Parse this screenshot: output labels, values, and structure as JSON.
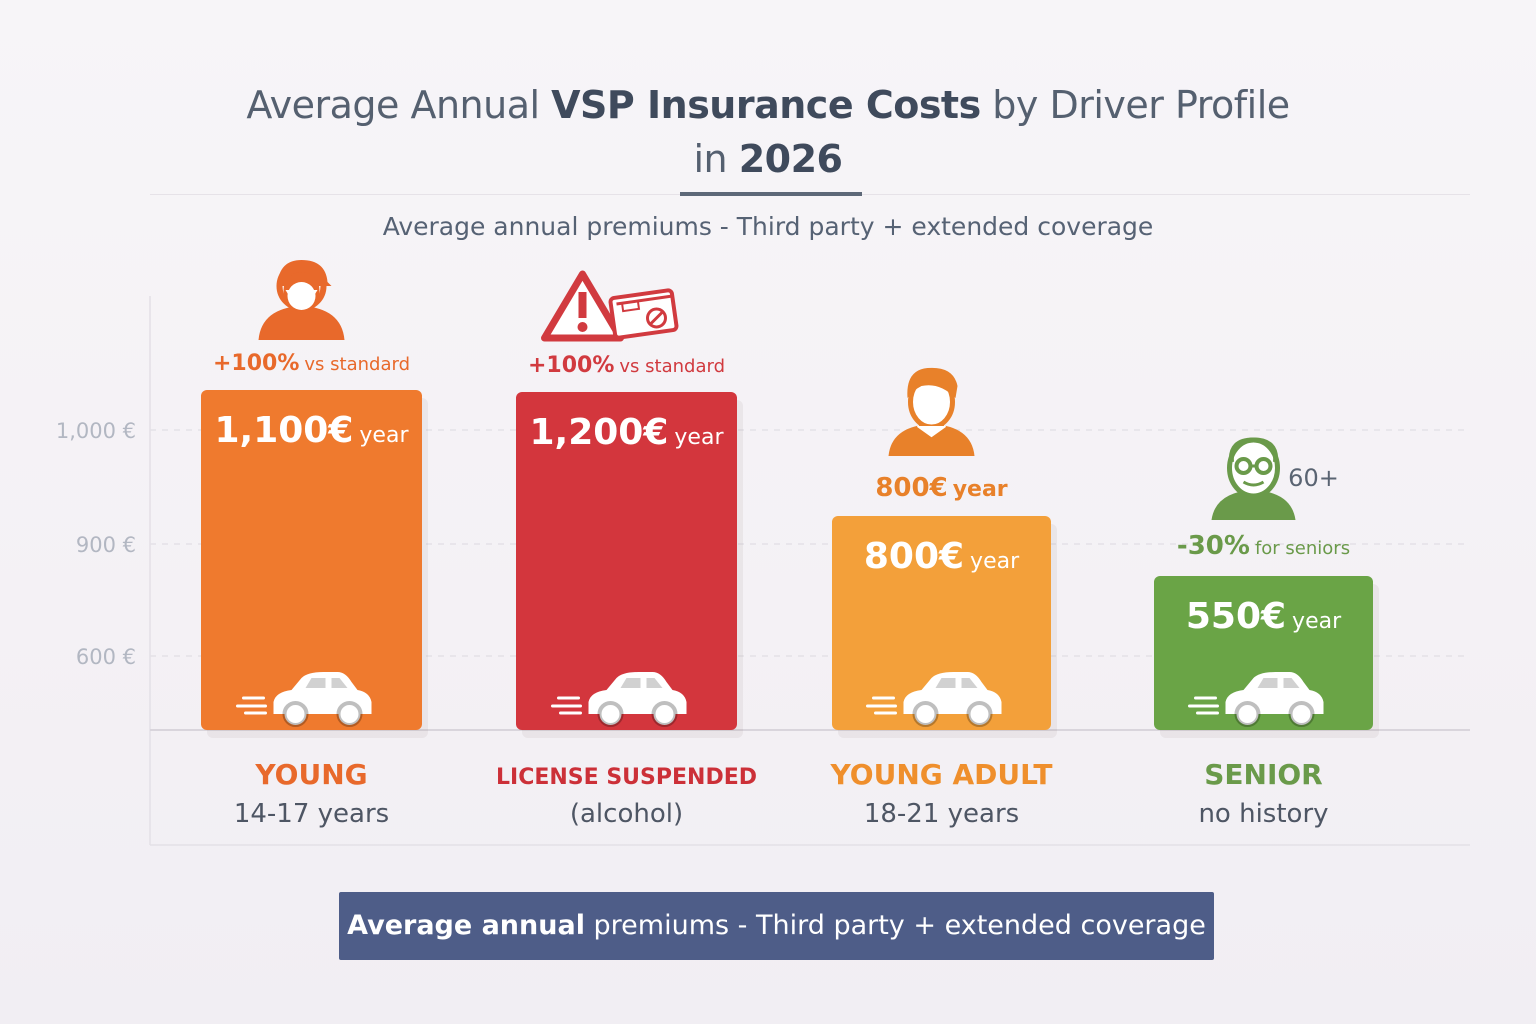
{
  "header": {
    "title_pre": "Average Annual ",
    "title_bold": "VSP Insurance Costs",
    "title_post": " by Driver Profile",
    "title_line2_pre": "in ",
    "title_line2_bold": "2026",
    "subtitle": "Average annual premiums - Third party + extended coverage"
  },
  "footer": {
    "bold": "Average annual",
    "rest": " premiums - Third party + extended coverage"
  },
  "chart_data": {
    "type": "bar",
    "title": "Average Annual VSP Insurance Costs by Driver Profile in 2026",
    "subtitle": "Average annual premiums - Third party + extended coverage",
    "y_ticks": [
      {
        "value": 1000,
        "label": "1,000 €"
      },
      {
        "value": 900,
        "label": "900 €"
      },
      {
        "value": 600,
        "label": "600 €"
      }
    ],
    "grid": true,
    "unit": "€",
    "categories": [
      "YOUNG",
      "LICENSE SUSPENDED",
      "YOUNG ADULT",
      "SENIOR"
    ],
    "values": [
      1100,
      1200,
      800,
      550
    ],
    "bars": [
      {
        "category": "YOUNG",
        "sublabel": "14-17 years",
        "value": 1100,
        "value_text": "1,100€",
        "unit_text": "year",
        "annotation_num": "+100%",
        "annotation_text": "vs standard",
        "icon": "young-driver-icon",
        "color": "#ef7a2e",
        "label_color": "#e8692b",
        "annotation_color": "#e8692b"
      },
      {
        "category": "LICENSE SUSPENDED",
        "sublabel": "(alcohol)",
        "value": 1200,
        "value_text": "1,200€",
        "unit_text": "year",
        "annotation_num": "+100%",
        "annotation_text": "vs standard",
        "icon": "warning-license-icon",
        "color": "#d3363d",
        "label_color": "#cc3038",
        "annotation_color": "#d13a3f"
      },
      {
        "category": "YOUNG ADULT",
        "sublabel": "18-21 years",
        "value": 800,
        "value_text": "800€",
        "unit_text": "year",
        "annotation_num": "800€",
        "annotation_text": "year",
        "icon": "young-adult-icon",
        "color": "#f3a03a",
        "label_color": "#ef8f2c",
        "annotation_color": "#e8812a"
      },
      {
        "category": "SENIOR",
        "sublabel": "no history",
        "value": 550,
        "value_text": "550€",
        "unit_text": "year",
        "annotation_num": "-30%",
        "annotation_text": "for seniors",
        "icon": "senior-icon",
        "icon_label": "60+",
        "color": "#6aa446",
        "label_color": "#6a9a4a",
        "annotation_color": "#6a9a4a"
      }
    ]
  }
}
